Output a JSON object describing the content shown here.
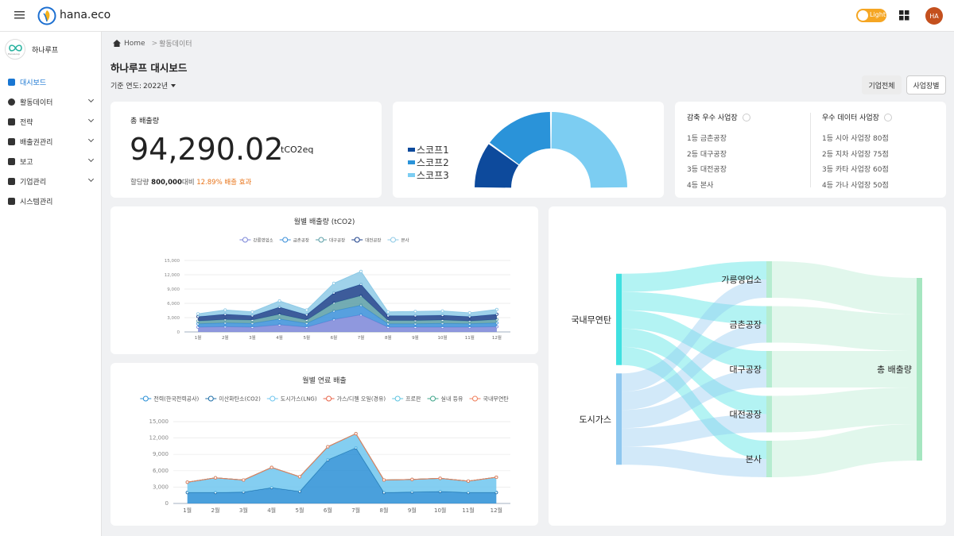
{
  "header": {
    "brand": "hana.eco",
    "theme": "Light",
    "avatar": "HA"
  },
  "sidebar": {
    "org": "하나루프",
    "logo_caption": "HanaLoop",
    "menu": [
      "대시보드",
      "활동데이터",
      "전략",
      "배출권관리",
      "보고",
      "기업관리",
      "시스템관리"
    ]
  },
  "breadcrumb": [
    "Home",
    "활동데이터"
  ],
  "page": {
    "title": "하나루프 대시보드",
    "year_label": "기준 연도:",
    "year": "2022년",
    "buttons": [
      "기업전체",
      "사업장별"
    ]
  },
  "total_card": {
    "title": "총 배출량",
    "value": "94,290.02",
    "unit": "tCO2eq",
    "quota_label": "할당량",
    "quota": "800,000",
    "compare": "대비",
    "effect": "12.89% 배출 효과"
  },
  "rankings": [
    {
      "title": "감축 우수 사업장",
      "items": [
        "1등 금촌공장",
        "2등 대구공장",
        "3등 대전공장",
        "4등 본사"
      ]
    },
    {
      "title": "우수 데이터 사업장",
      "items": [
        "1등 시아 사업장 80점",
        "2등 지차 사업장 75점",
        "3등 카타 사업장 60점",
        "4등 가나 사업장 50점"
      ]
    }
  ],
  "chart_data": [
    {
      "type": "area",
      "title": "월별 배출량 (tCO2)",
      "stacked": true,
      "categories": [
        "1월",
        "2월",
        "3월",
        "4월",
        "5월",
        "6월",
        "7월",
        "8월",
        "9월",
        "10월",
        "11월",
        "12월"
      ],
      "series": [
        {
          "name": "강릉영업소",
          "color": "#7b86d8",
          "values": [
            1000,
            1100,
            1000,
            1500,
            1000,
            2600,
            3600,
            1000,
            1000,
            1000,
            1000,
            1100
          ]
        },
        {
          "name": "금촌공장",
          "color": "#3a8fd9",
          "values": [
            700,
            800,
            800,
            1200,
            800,
            1800,
            2000,
            700,
            700,
            800,
            700,
            800
          ]
        },
        {
          "name": "대구공장",
          "color": "#5a9ea6",
          "values": [
            600,
            700,
            700,
            1000,
            700,
            1700,
            2000,
            700,
            700,
            700,
            600,
            700
          ]
        },
        {
          "name": "대전공장",
          "color": "#1b3f8a",
          "values": [
            900,
            1100,
            900,
            1500,
            1100,
            2100,
            2400,
            1000,
            1000,
            1000,
            900,
            1100
          ]
        },
        {
          "name": "본사",
          "color": "#8ecae6",
          "values": [
            600,
            900,
            800,
            1300,
            1000,
            2000,
            2700,
            800,
            900,
            900,
            800,
            1000
          ]
        }
      ],
      "ylim": [
        0,
        15000
      ],
      "yticks": [
        0,
        {
          "value": 3000,
          "label": "3,000"
        },
        {
          "value": 6000,
          "label": "6,000"
        },
        {
          "value": 9000,
          "label": "9,000"
        },
        {
          "value": 12000,
          "label": "12,000"
        },
        {
          "value": 15000,
          "label": "15,000"
        }
      ],
      "grid": true
    },
    {
      "type": "area",
      "title": "월별 연료 배출",
      "stacked": true,
      "categories": [
        "1월",
        "2월",
        "3월",
        "4월",
        "5월",
        "6월",
        "7월",
        "8월",
        "9월",
        "10월",
        "11월",
        "12월"
      ],
      "series": [
        {
          "name": "전력(한국전력공사)",
          "color": "#2a8fd6",
          "values": [
            2000,
            2000,
            2100,
            2900,
            2200,
            8000,
            10200,
            2000,
            2100,
            2200,
            2000,
            2000
          ]
        },
        {
          "name": "이산화탄소(CO2)",
          "color": "#1f6fa8",
          "values": [
            0,
            0,
            0,
            0,
            0,
            0,
            0,
            0,
            0,
            0,
            0,
            0
          ]
        },
        {
          "name": "도시가스(LNG)",
          "color": "#6fc6ef",
          "values": [
            1900,
            2700,
            2200,
            3700,
            2700,
            2400,
            2600,
            2300,
            2300,
            2400,
            2100,
            2800
          ]
        },
        {
          "name": "가스/디젤 오일(경유)",
          "color": "#e8654a",
          "values": [
            0,
            0,
            0,
            0,
            0,
            0,
            0,
            0,
            0,
            0,
            0,
            0
          ]
        },
        {
          "name": "프로판",
          "color": "#5ec4e0",
          "values": [
            0,
            0,
            0,
            0,
            0,
            0,
            0,
            0,
            0,
            0,
            0,
            0
          ]
        },
        {
          "name": "실내 등유",
          "color": "#3fa58a",
          "values": [
            0,
            0,
            0,
            0,
            0,
            0,
            0,
            0,
            0,
            0,
            0,
            0
          ]
        },
        {
          "name": "국내무연탄",
          "color": "#f07e5a",
          "values": [
            0,
            0,
            0,
            0,
            0,
            0,
            0,
            0,
            0,
            0,
            0,
            0
          ]
        }
      ],
      "ylim": [
        0,
        15000
      ],
      "yticks": [
        0,
        {
          "value": 3000,
          "label": "3,000"
        },
        {
          "value": 6000,
          "label": "6,000"
        },
        {
          "value": 9000,
          "label": "9,000"
        },
        {
          "value": 12000,
          "label": "12,000"
        },
        {
          "value": 15000,
          "label": "15,000"
        }
      ],
      "grid": true
    },
    {
      "type": "half-donut",
      "categories": [
        "스코프1",
        "스코프2",
        "스코프3"
      ],
      "values": [
        20,
        30,
        50
      ],
      "colors": [
        "#0d4a9c",
        "#2a93d9",
        "#7ccdf2"
      ]
    },
    {
      "type": "sankey",
      "nodes": [
        {
          "name": "국내무연탄",
          "color": "#40e0e0"
        },
        {
          "name": "도시가스",
          "color": "#8fc7ef"
        },
        {
          "name": "가릉영업소",
          "color": "#b5ecd0"
        },
        {
          "name": "금촌공장",
          "color": "#b5ecd0"
        },
        {
          "name": "대구공장",
          "color": "#b5ecd0"
        },
        {
          "name": "대전공장",
          "color": "#b5ecd0"
        },
        {
          "name": "본사",
          "color": "#b5ecd0"
        },
        {
          "name": "총 배출량",
          "color": "#a5e6c0"
        }
      ],
      "links": [
        {
          "source": "국내무연탄",
          "target": "가릉영업소",
          "value": 5
        },
        {
          "source": "국내무연탄",
          "target": "금촌공장",
          "value": 5
        },
        {
          "source": "국내무연탄",
          "target": "대구공장",
          "value": 5
        },
        {
          "source": "국내무연탄",
          "target": "대전공장",
          "value": 5
        },
        {
          "source": "국내무연탄",
          "target": "본사",
          "value": 5
        },
        {
          "source": "도시가스",
          "target": "가릉영업소",
          "value": 5
        },
        {
          "source": "도시가스",
          "target": "금촌공장",
          "value": 5
        },
        {
          "source": "도시가스",
          "target": "대구공장",
          "value": 5
        },
        {
          "source": "도시가스",
          "target": "대전공장",
          "value": 5
        },
        {
          "source": "도시가스",
          "target": "본사",
          "value": 5
        },
        {
          "source": "가릉영업소",
          "target": "총 배출량",
          "value": 10
        },
        {
          "source": "금촌공장",
          "target": "총 배출량",
          "value": 10
        },
        {
          "source": "대구공장",
          "target": "총 배출량",
          "value": 10
        },
        {
          "source": "대전공장",
          "target": "총 배출량",
          "value": 10
        },
        {
          "source": "본사",
          "target": "총 배출량",
          "value": 10
        }
      ]
    }
  ]
}
